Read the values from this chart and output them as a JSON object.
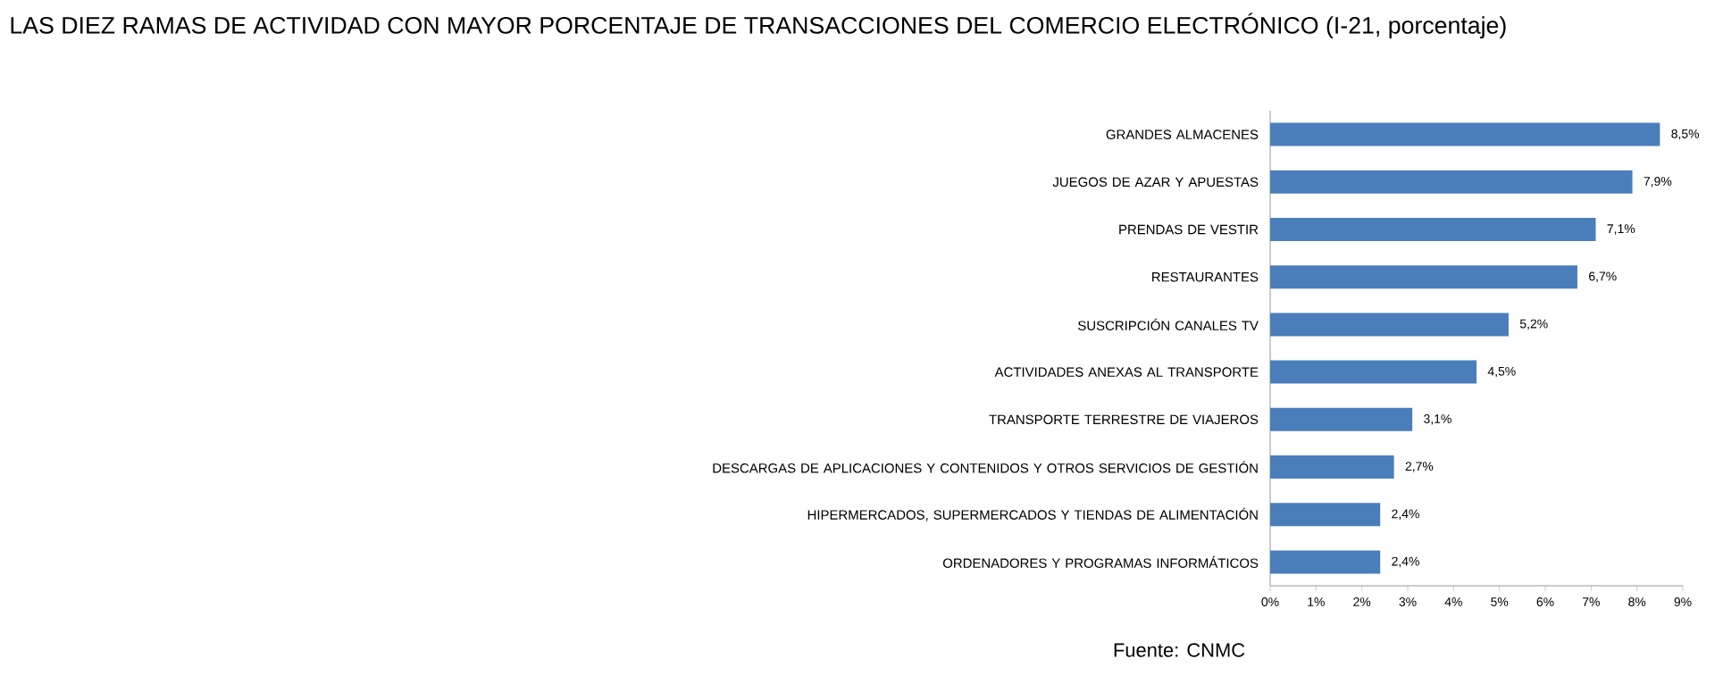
{
  "chart_data": {
    "type": "bar",
    "orientation": "horizontal",
    "title": "LAS DIEZ RAMAS DE ACTIVIDAD CON MAYOR PORCENTAJE DE TRANSACCIONES DEL COMERCIO ELECTRÓNICO (I-21, porcentaje)",
    "categories": [
      "GRANDES ALMACENES",
      "JUEGOS DE AZAR Y APUESTAS",
      "PRENDAS DE VESTIR",
      "RESTAURANTES",
      "SUSCRIPCIÓN CANALES TV",
      "ACTIVIDADES ANEXAS AL TRANSPORTE",
      "TRANSPORTE TERRESTRE DE VIAJEROS",
      "DESCARGAS DE APLICACIONES Y CONTENIDOS Y OTROS SERVICIOS DE GESTIÓN",
      "HIPERMERCADOS, SUPERMERCADOS Y TIENDAS DE ALIMENTACIÓN",
      "ORDENADORES Y PROGRAMAS INFORMÁTICOS"
    ],
    "values": [
      8.5,
      7.9,
      7.1,
      6.7,
      5.2,
      4.5,
      3.1,
      2.7,
      2.4,
      2.4
    ],
    "value_labels": [
      "8,5%",
      "7,9%",
      "7,1%",
      "6,7%",
      "5,2%",
      "4,5%",
      "3,1%",
      "2,7%",
      "2,4%",
      "2,4%"
    ],
    "color": "#4a7ebb",
    "xlim": [
      0,
      9
    ],
    "xticks": [
      {
        "value": 0,
        "label": "0%"
      },
      {
        "value": 1,
        "label": "1%"
      },
      {
        "value": 2,
        "label": "2%"
      },
      {
        "value": 3,
        "label": "3%"
      },
      {
        "value": 4,
        "label": "4%"
      },
      {
        "value": 5,
        "label": "5%"
      },
      {
        "value": 6,
        "label": "6%"
      },
      {
        "value": 7,
        "label": "7%"
      },
      {
        "value": 8,
        "label": "8%"
      },
      {
        "value": 9,
        "label": "9%"
      }
    ],
    "annotations": [
      "Fuente: CNMC"
    ]
  }
}
